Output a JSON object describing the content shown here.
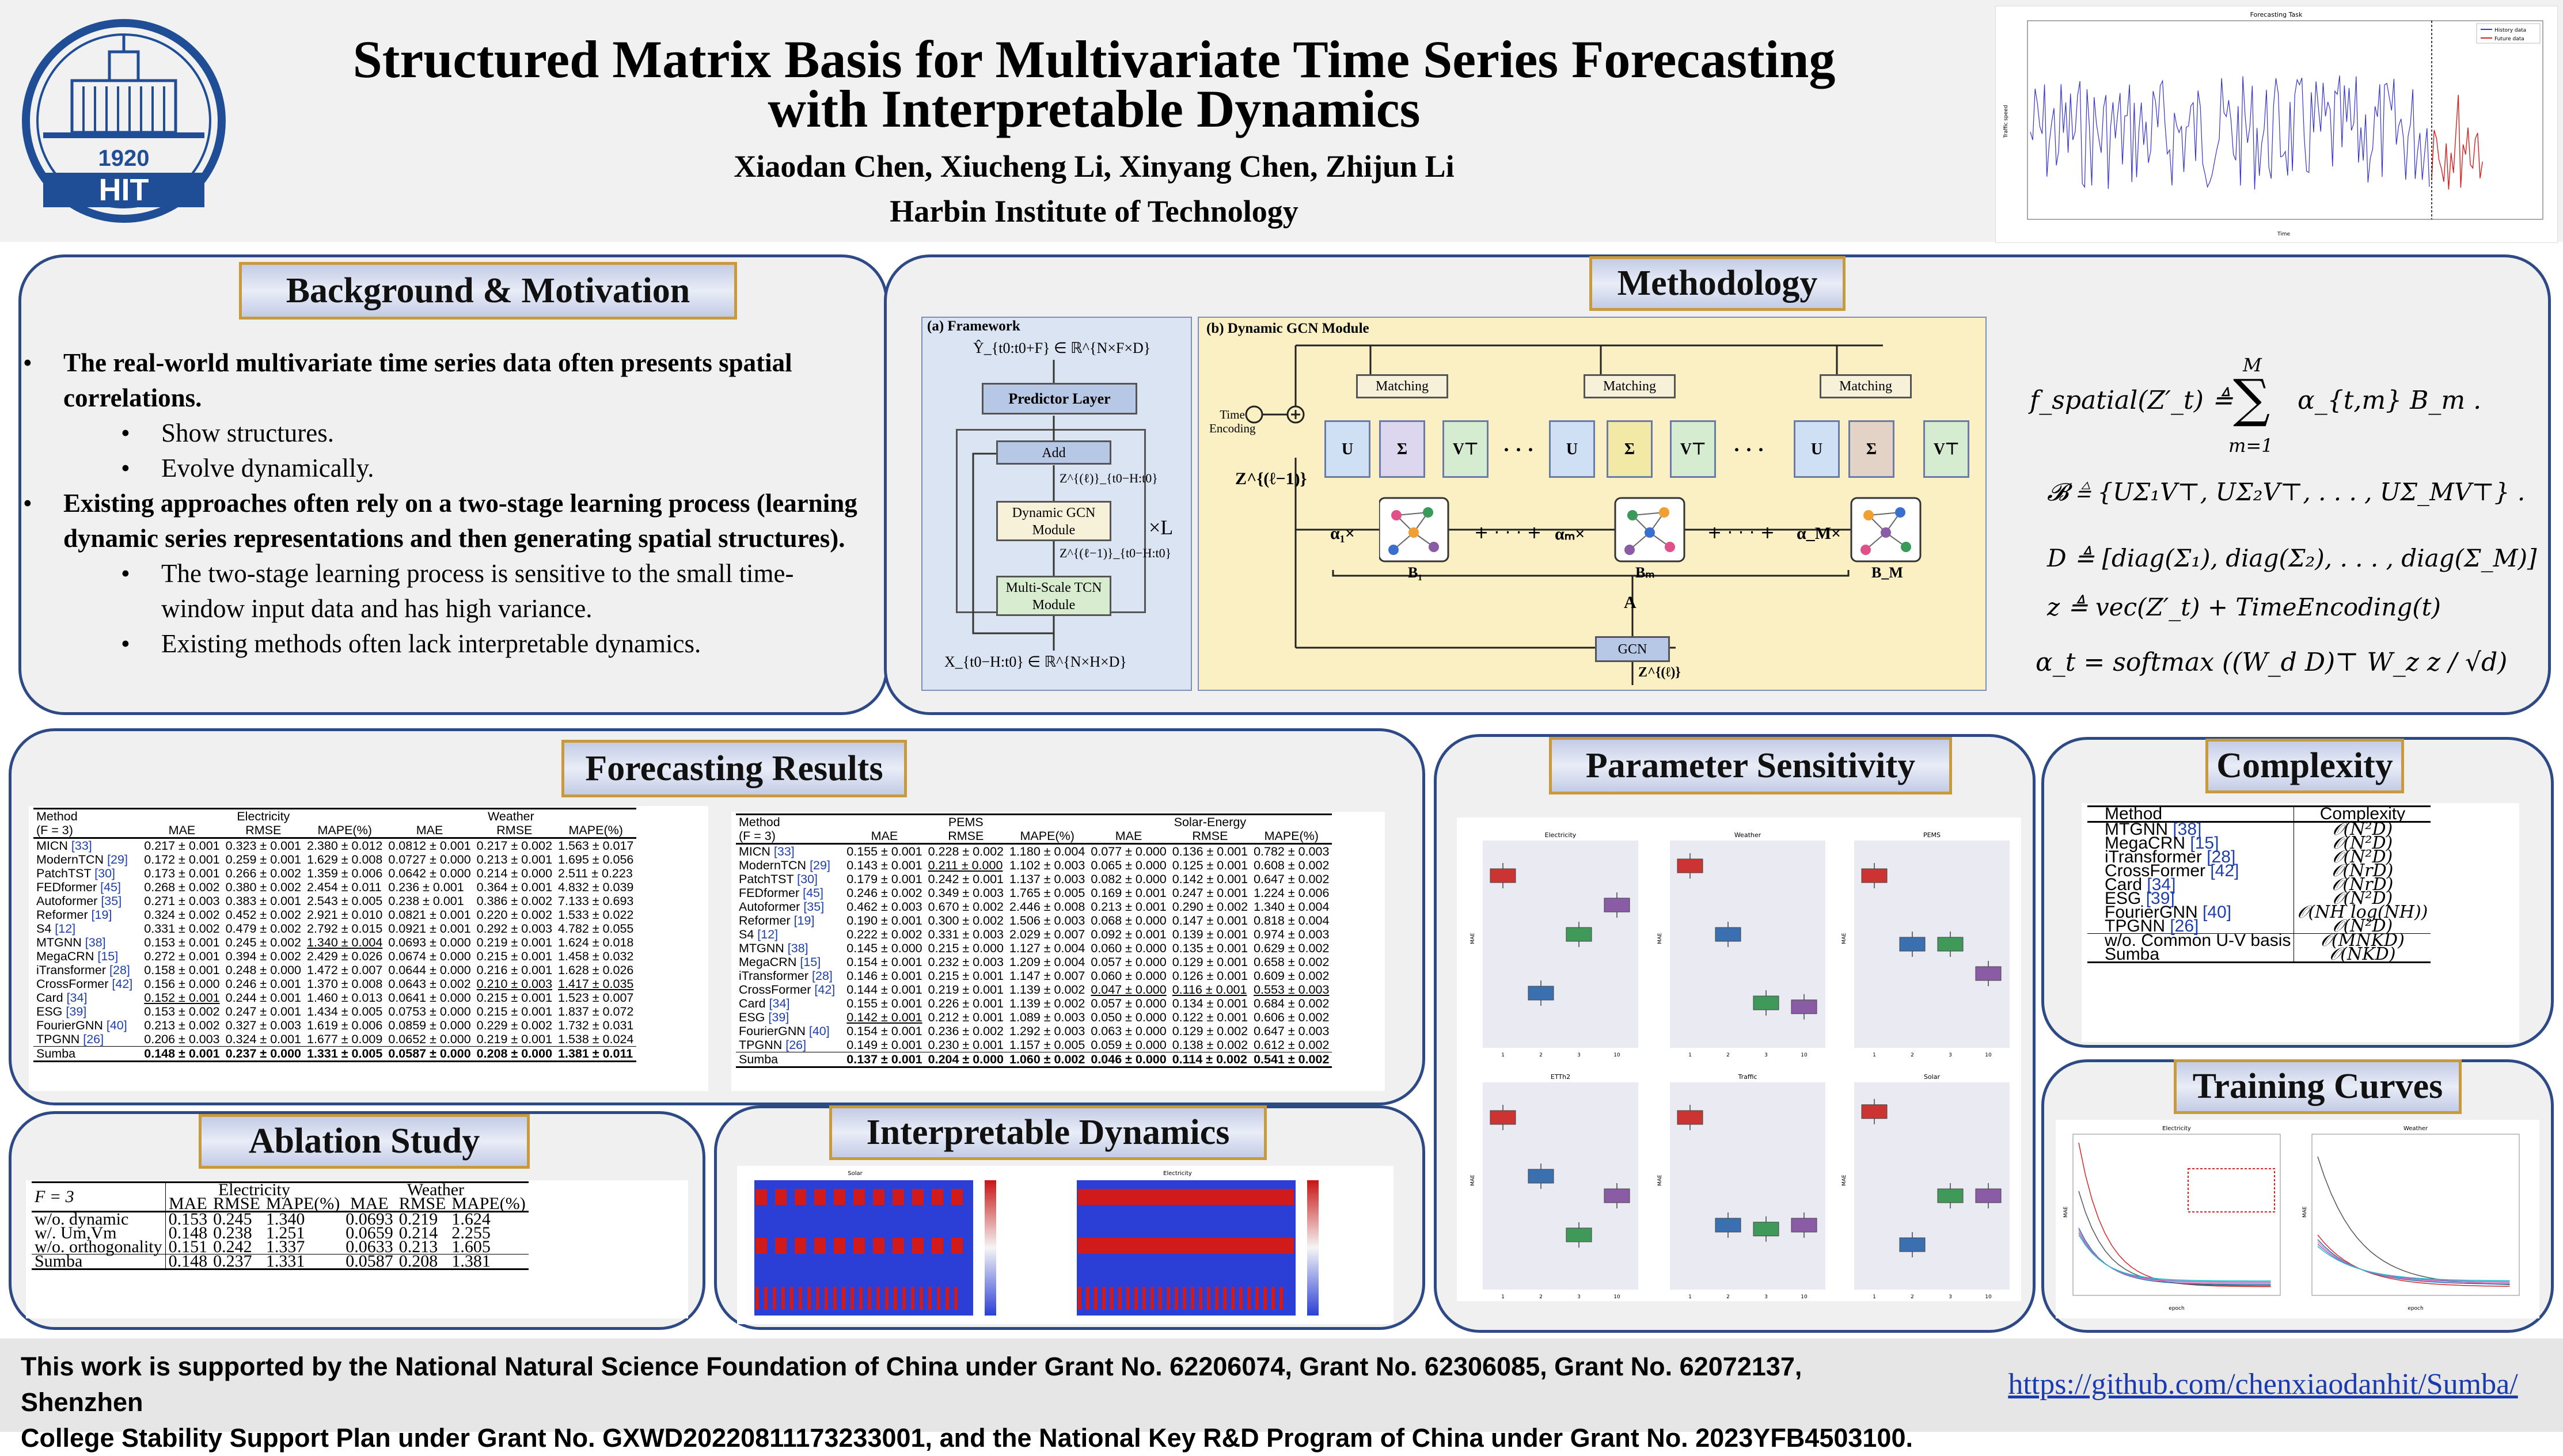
{
  "header": {
    "title_line1": "Structured Matrix Basis for Multivariate Time Series Forecasting",
    "title_line2": "with Interpretable Dynamics",
    "authors": "Xiaodan Chen, Xiucheng Li, Xinyang Chen, Zhijun Li",
    "affiliation": "Harbin Institute of Technology",
    "logo_year": "1920",
    "logo_text": "HIT",
    "forecast_plot": {
      "title": "Forecasting Task",
      "legend": [
        "History data",
        "Future data"
      ],
      "ylabel": "Traffic speed",
      "xlabel": "Time"
    }
  },
  "sections": {
    "background": "Background & Motivation",
    "methodology": "Methodology",
    "forecasting": "Forecasting Results",
    "ablation": "Ablation Study",
    "interpretable": "Interpretable Dynamics",
    "sensitivity": "Parameter Sensitivity",
    "complexity": "Complexity",
    "training": "Training Curves"
  },
  "background": {
    "b1": "The real-world multivariate time series data often presents spatial correlations.",
    "b1a": "Show structures.",
    "b1b": "Evolve dynamically.",
    "b2": "Existing approaches often rely on a two-stage learning process (learning dynamic series representations and then generating spatial structures).",
    "b2a": "The two-stage learning process is sensitive to the small time-window input data and has high variance.",
    "b2b": "Existing methods often lack interpretable dynamics."
  },
  "method": {
    "framework": "(a) Framework",
    "gcn_module": "(b) Dynamic GCN Module",
    "predictor": "Predictor Layer",
    "add": "Add",
    "dgcn": "Dynamic GCN Module",
    "tcn": "Multi-Scale TCN Module",
    "xL": "×L",
    "matching": "Matching",
    "time_encoding": "Time Encoding",
    "gcn": "GCN",
    "Y": "Ŷ_{t0:t0+F} ∈ ℝ^{N×F×D}",
    "X": "X_{t0−H:t0} ∈ ℝ^{N×H×D}",
    "Zl": "Z^{(ℓ)}_{t0−H:t0}",
    "Zl1": "Z^{(ℓ−1)}_{t0−H:t0}",
    "Zi": "Z^{(ℓ−1)}",
    "Zo": "Z^{(ℓ)}",
    "A": "A",
    "U": "U",
    "S": "Σ",
    "V": "V⊤",
    "a1": "α₁×",
    "am": "αₘ×",
    "aM": "α_M×",
    "B1": "B₁",
    "Bm": "Bₘ",
    "BM": "B_M",
    "dots": "· · ·",
    "eq1_lhs": "f_spatial(Z′_t) ≜",
    "eq1_rhs": "α_{t,m} B_m .",
    "eq1_sum_top": "M",
    "eq1_sum_bot": "m=1",
    "eq2": "𝓑 ≜ {UΣ₁V⊤, UΣ₂V⊤, . . . , UΣ_MV⊤} .",
    "eq3": "D ≜ [diag(Σ₁), diag(Σ₂), . . . , diag(Σ_M)]",
    "eq4": "z ≜ vec(Z′_t) + TimeEncoding(t)",
    "eq5": "α_t = softmax ((W_d D)⊤ W_z z / √d)"
  },
  "forecast_table1": {
    "method_header": "Method",
    "f_header": "(F = 3)",
    "groups": [
      "Electricity",
      "Weather"
    ],
    "cols": [
      "MAE",
      "RMSE",
      "MAPE(%)",
      "MAE",
      "RMSE",
      "MAPE(%)"
    ],
    "rows": [
      [
        "MICN",
        "[33]",
        "0.217 ± 0.001",
        "0.323 ± 0.001",
        "2.380 ± 0.012",
        "0.0812 ± 0.001",
        "0.217 ± 0.002",
        "1.563 ± 0.017"
      ],
      [
        "ModernTCN",
        "[29]",
        "0.172 ± 0.001",
        "0.259 ± 0.001",
        "1.629 ± 0.008",
        "0.0727 ± 0.000",
        "0.213 ± 0.001",
        "1.695 ± 0.056"
      ],
      [
        "PatchTST",
        "[30]",
        "0.173 ± 0.001",
        "0.266 ± 0.002",
        "1.359 ± 0.006",
        "0.0642 ± 0.000",
        "0.214 ± 0.000",
        "2.511 ± 0.223"
      ],
      [
        "FEDformer",
        "[45]",
        "0.268 ± 0.002",
        "0.380 ± 0.002",
        "2.454 ± 0.011",
        "0.236 ± 0.001",
        "0.364 ± 0.001",
        "4.832 ± 0.039"
      ],
      [
        "Autoformer",
        "[35]",
        "0.271 ± 0.003",
        "0.383 ± 0.001",
        "2.543 ± 0.005",
        "0.238 ± 0.001",
        "0.386 ± 0.002",
        "7.133 ± 0.693"
      ],
      [
        "Reformer",
        "[19]",
        "0.324 ± 0.002",
        "0.452 ± 0.002",
        "2.921 ± 0.010",
        "0.0821 ± 0.001",
        "0.220 ± 0.002",
        "1.533 ± 0.022"
      ],
      [
        "S4",
        "[12]",
        "0.331 ± 0.002",
        "0.479 ± 0.002",
        "2.792 ± 0.015",
        "0.0921 ± 0.001",
        "0.292 ± 0.003",
        "4.782 ± 0.055"
      ],
      [
        "MTGNN",
        "[38]",
        "0.153 ± 0.001",
        "0.245 ± 0.002",
        "1.340 ± 0.004",
        "0.0693 ± 0.000",
        "0.219 ± 0.001",
        "1.624 ± 0.018"
      ],
      [
        "MegaCRN",
        "[15]",
        "0.272 ± 0.001",
        "0.394 ± 0.002",
        "2.429 ± 0.026",
        "0.0674 ± 0.000",
        "0.215 ± 0.001",
        "1.458 ± 0.032"
      ],
      [
        "iTransformer",
        "[28]",
        "0.158 ± 0.001",
        "0.248 ± 0.000",
        "1.472 ± 0.007",
        "0.0644 ± 0.000",
        "0.216 ± 0.001",
        "1.628 ± 0.026"
      ],
      [
        "CrossFormer",
        "[42]",
        "0.156 ± 0.000",
        "0.246 ± 0.001",
        "1.370 ± 0.008",
        "0.0643 ± 0.002",
        "0.210 ± 0.003",
        "1.417 ± 0.035"
      ],
      [
        "Card",
        "[34]",
        "0.152 ± 0.001",
        "0.244 ± 0.001",
        "1.460 ± 0.013",
        "0.0641 ± 0.000",
        "0.215 ± 0.001",
        "1.523 ± 0.007"
      ],
      [
        "ESG",
        "[39]",
        "0.153 ± 0.002",
        "0.247 ± 0.001",
        "1.434 ± 0.005",
        "0.0753 ± 0.000",
        "0.215 ± 0.001",
        "1.837 ± 0.072"
      ],
      [
        "FourierGNN",
        "[40]",
        "0.213 ± 0.002",
        "0.327 ± 0.003",
        "1.619 ± 0.006",
        "0.0859 ± 0.000",
        "0.229 ± 0.002",
        "1.732 ± 0.031"
      ],
      [
        "TPGNN",
        "[26]",
        "0.206 ± 0.003",
        "0.324 ± 0.001",
        "1.677 ± 0.009",
        "0.0652 ± 0.000",
        "0.219 ± 0.001",
        "1.538 ± 0.024"
      ]
    ],
    "sumba": [
      "Sumba",
      "",
      "0.148 ± 0.001",
      "0.237 ± 0.000",
      "1.331 ± 0.005",
      "0.0587 ± 0.000",
      "0.208 ± 0.000",
      "1.381 ± 0.011"
    ]
  },
  "forecast_table2": {
    "method_header": "Method",
    "f_header": "(F = 3)",
    "groups": [
      "PEMS",
      "Solar-Energy"
    ],
    "cols": [
      "MAE",
      "RMSE",
      "MAPE(%)",
      "MAE",
      "RMSE",
      "MAPE(%)"
    ],
    "rows": [
      [
        "MICN",
        "[33]",
        "0.155 ± 0.001",
        "0.228 ± 0.002",
        "1.180 ± 0.004",
        "0.077 ± 0.000",
        "0.136 ± 0.001",
        "0.782 ± 0.003"
      ],
      [
        "ModernTCN",
        "[29]",
        "0.143 ± 0.001",
        "0.211 ± 0.000",
        "1.102 ± 0.003",
        "0.065 ± 0.000",
        "0.125 ± 0.001",
        "0.608 ± 0.002"
      ],
      [
        "PatchTST",
        "[30]",
        "0.179 ± 0.001",
        "0.242 ± 0.001",
        "1.137 ± 0.003",
        "0.082 ± 0.000",
        "0.142 ± 0.001",
        "0.647 ± 0.002"
      ],
      [
        "FEDformer",
        "[45]",
        "0.246 ± 0.002",
        "0.349 ± 0.003",
        "1.765 ± 0.005",
        "0.169 ± 0.001",
        "0.247 ± 0.001",
        "1.224 ± 0.006"
      ],
      [
        "Autoformer",
        "[35]",
        "0.462 ± 0.003",
        "0.670 ± 0.002",
        "2.446 ± 0.008",
        "0.213 ± 0.001",
        "0.290 ± 0.002",
        "1.340 ± 0.004"
      ],
      [
        "Reformer",
        "[19]",
        "0.190 ± 0.001",
        "0.300 ± 0.002",
        "1.506 ± 0.003",
        "0.068 ± 0.000",
        "0.147 ± 0.001",
        "0.818 ± 0.004"
      ],
      [
        "S4",
        "[12]",
        "0.222 ± 0.002",
        "0.331 ± 0.003",
        "2.029 ± 0.007",
        "0.092 ± 0.001",
        "0.139 ± 0.001",
        "0.974 ± 0.003"
      ],
      [
        "MTGNN",
        "[38]",
        "0.145 ± 0.000",
        "0.215 ± 0.000",
        "1.127 ± 0.004",
        "0.060 ± 0.000",
        "0.135 ± 0.001",
        "0.629 ± 0.002"
      ],
      [
        "MegaCRN",
        "[15]",
        "0.154 ± 0.001",
        "0.232 ± 0.003",
        "1.209 ± 0.004",
        "0.057 ± 0.000",
        "0.129 ± 0.001",
        "0.658 ± 0.002"
      ],
      [
        "iTransformer",
        "[28]",
        "0.146 ± 0.001",
        "0.215 ± 0.001",
        "1.147 ± 0.007",
        "0.060 ± 0.000",
        "0.126 ± 0.001",
        "0.609 ± 0.002"
      ],
      [
        "CrossFormer",
        "[42]",
        "0.144 ± 0.001",
        "0.219 ± 0.001",
        "1.139 ± 0.002",
        "0.047 ± 0.000",
        "0.116 ± 0.001",
        "0.553 ± 0.003"
      ],
      [
        "Card",
        "[34]",
        "0.155 ± 0.001",
        "0.226 ± 0.001",
        "1.139 ± 0.002",
        "0.057 ± 0.000",
        "0.134 ± 0.001",
        "0.684 ± 0.002"
      ],
      [
        "ESG",
        "[39]",
        "0.142 ± 0.001",
        "0.212 ± 0.001",
        "1.089 ± 0.003",
        "0.050 ± 0.000",
        "0.122 ± 0.001",
        "0.606 ± 0.002"
      ],
      [
        "FourierGNN",
        "[40]",
        "0.154 ± 0.001",
        "0.236 ± 0.002",
        "1.292 ± 0.003",
        "0.063 ± 0.000",
        "0.129 ± 0.002",
        "0.647 ± 0.003"
      ],
      [
        "TPGNN",
        "[26]",
        "0.149 ± 0.001",
        "0.230 ± 0.001",
        "1.157 ± 0.005",
        "0.059 ± 0.000",
        "0.138 ± 0.002",
        "0.612 ± 0.002"
      ]
    ],
    "sumba": [
      "Sumba",
      "",
      "0.137 ± 0.001",
      "0.204 ± 0.000",
      "1.060 ± 0.002",
      "0.046 ± 0.000",
      "0.114 ± 0.002",
      "0.541 ± 0.002"
    ]
  },
  "ablation": {
    "f_header": "F = 3",
    "groups": [
      "Electricity",
      "Weather"
    ],
    "cols": [
      "MAE",
      "RMSE",
      "MAPE(%)",
      "MAE",
      "RMSE",
      "MAPE(%)"
    ],
    "rows": [
      [
        "w/o. dynamic",
        "0.153",
        "0.245",
        "1.340",
        "0.0693",
        "0.219",
        "1.624"
      ],
      [
        "w/. Um,Vm",
        "0.148",
        "0.238",
        "1.251",
        "0.0659",
        "0.214",
        "2.255"
      ],
      [
        "w/o. orthogonality",
        "0.151",
        "0.242",
        "1.337",
        "0.0633",
        "0.213",
        "1.605"
      ]
    ],
    "sumba": [
      "Sumba",
      "0.148",
      "0.237",
      "1.331",
      "0.0587",
      "0.208",
      "1.381"
    ]
  },
  "interpretable": {
    "titles": [
      "Solar",
      "Electricity"
    ]
  },
  "sensitivity": {
    "panels": [
      {
        "title": "Electricity",
        "xticks": [
          "1",
          "2",
          "3",
          "10"
        ],
        "colors": [
          "#cc3333",
          "#3a6fb0",
          "#3f9a5a",
          "#8a5ca6"
        ]
      },
      {
        "title": "Weather",
        "xticks": [
          "1",
          "2",
          "3",
          "10"
        ],
        "colors": [
          "#cc3333",
          "#3a6fb0",
          "#3f9a5a",
          "#8a5ca6"
        ]
      },
      {
        "title": "PEMS",
        "xticks": [
          "1",
          "2",
          "3",
          "10"
        ],
        "colors": [
          "#cc3333",
          "#3a6fb0",
          "#3f9a5a",
          "#8a5ca6"
        ]
      },
      {
        "title": "ETTh2",
        "xticks": [
          "1",
          "2",
          "3",
          "10"
        ],
        "colors": [
          "#cc3333",
          "#3a6fb0",
          "#3f9a5a",
          "#8a5ca6"
        ]
      },
      {
        "title": "Traffic",
        "xticks": [
          "1",
          "2",
          "3",
          "10"
        ],
        "colors": [
          "#cc3333",
          "#3a6fb0",
          "#3f9a5a",
          "#8a5ca6"
        ]
      },
      {
        "title": "Solar",
        "xticks": [
          "1",
          "2",
          "3",
          "10"
        ],
        "colors": [
          "#cc3333",
          "#3a6fb0",
          "#3f9a5a",
          "#8a5ca6"
        ]
      }
    ],
    "ylabel": "MAE"
  },
  "complexity": {
    "header": [
      "Method",
      "Complexity"
    ],
    "rows": [
      [
        "MTGNN",
        "[38]",
        "𝒪(N²D)"
      ],
      [
        "MegaCRN",
        "[15]",
        "𝒪(N²D)"
      ],
      [
        "iTransformer",
        "[28]",
        "𝒪(N²D)"
      ],
      [
        "CrossFormer",
        "[42]",
        "𝒪(NrD)"
      ],
      [
        "Card",
        "[34]",
        "𝒪(NrD)"
      ],
      [
        "ESG",
        "[39]",
        "𝒪(N²D)"
      ],
      [
        "FourierGNN",
        "[40]",
        "𝒪(NH log(NH))"
      ],
      [
        "TPGNN",
        "[26]",
        "𝒪(N²D)"
      ]
    ],
    "rows2": [
      [
        "w/o. Common U-V basis",
        "",
        "𝒪(MNKD)"
      ],
      [
        "Sumba",
        "",
        "𝒪(NKD)"
      ]
    ]
  },
  "training": {
    "titles": [
      "Electricity",
      "Weather"
    ],
    "xlabel": "epoch",
    "ylabel": "MAE"
  },
  "footer": {
    "ack_line1": "This work is supported by the National Natural Science Foundation of China under Grant No. 62206074, Grant No. 62306085, Grant No. 62072137, Shenzhen",
    "ack_line2": "College Stability Support Plan under Grant No. GXWD20220811173233001, and the National Key R&D Program of China under Grant No. 2023YFB4503100.",
    "github": "https://github.com/chenxiaodanhit/Sumba/"
  }
}
